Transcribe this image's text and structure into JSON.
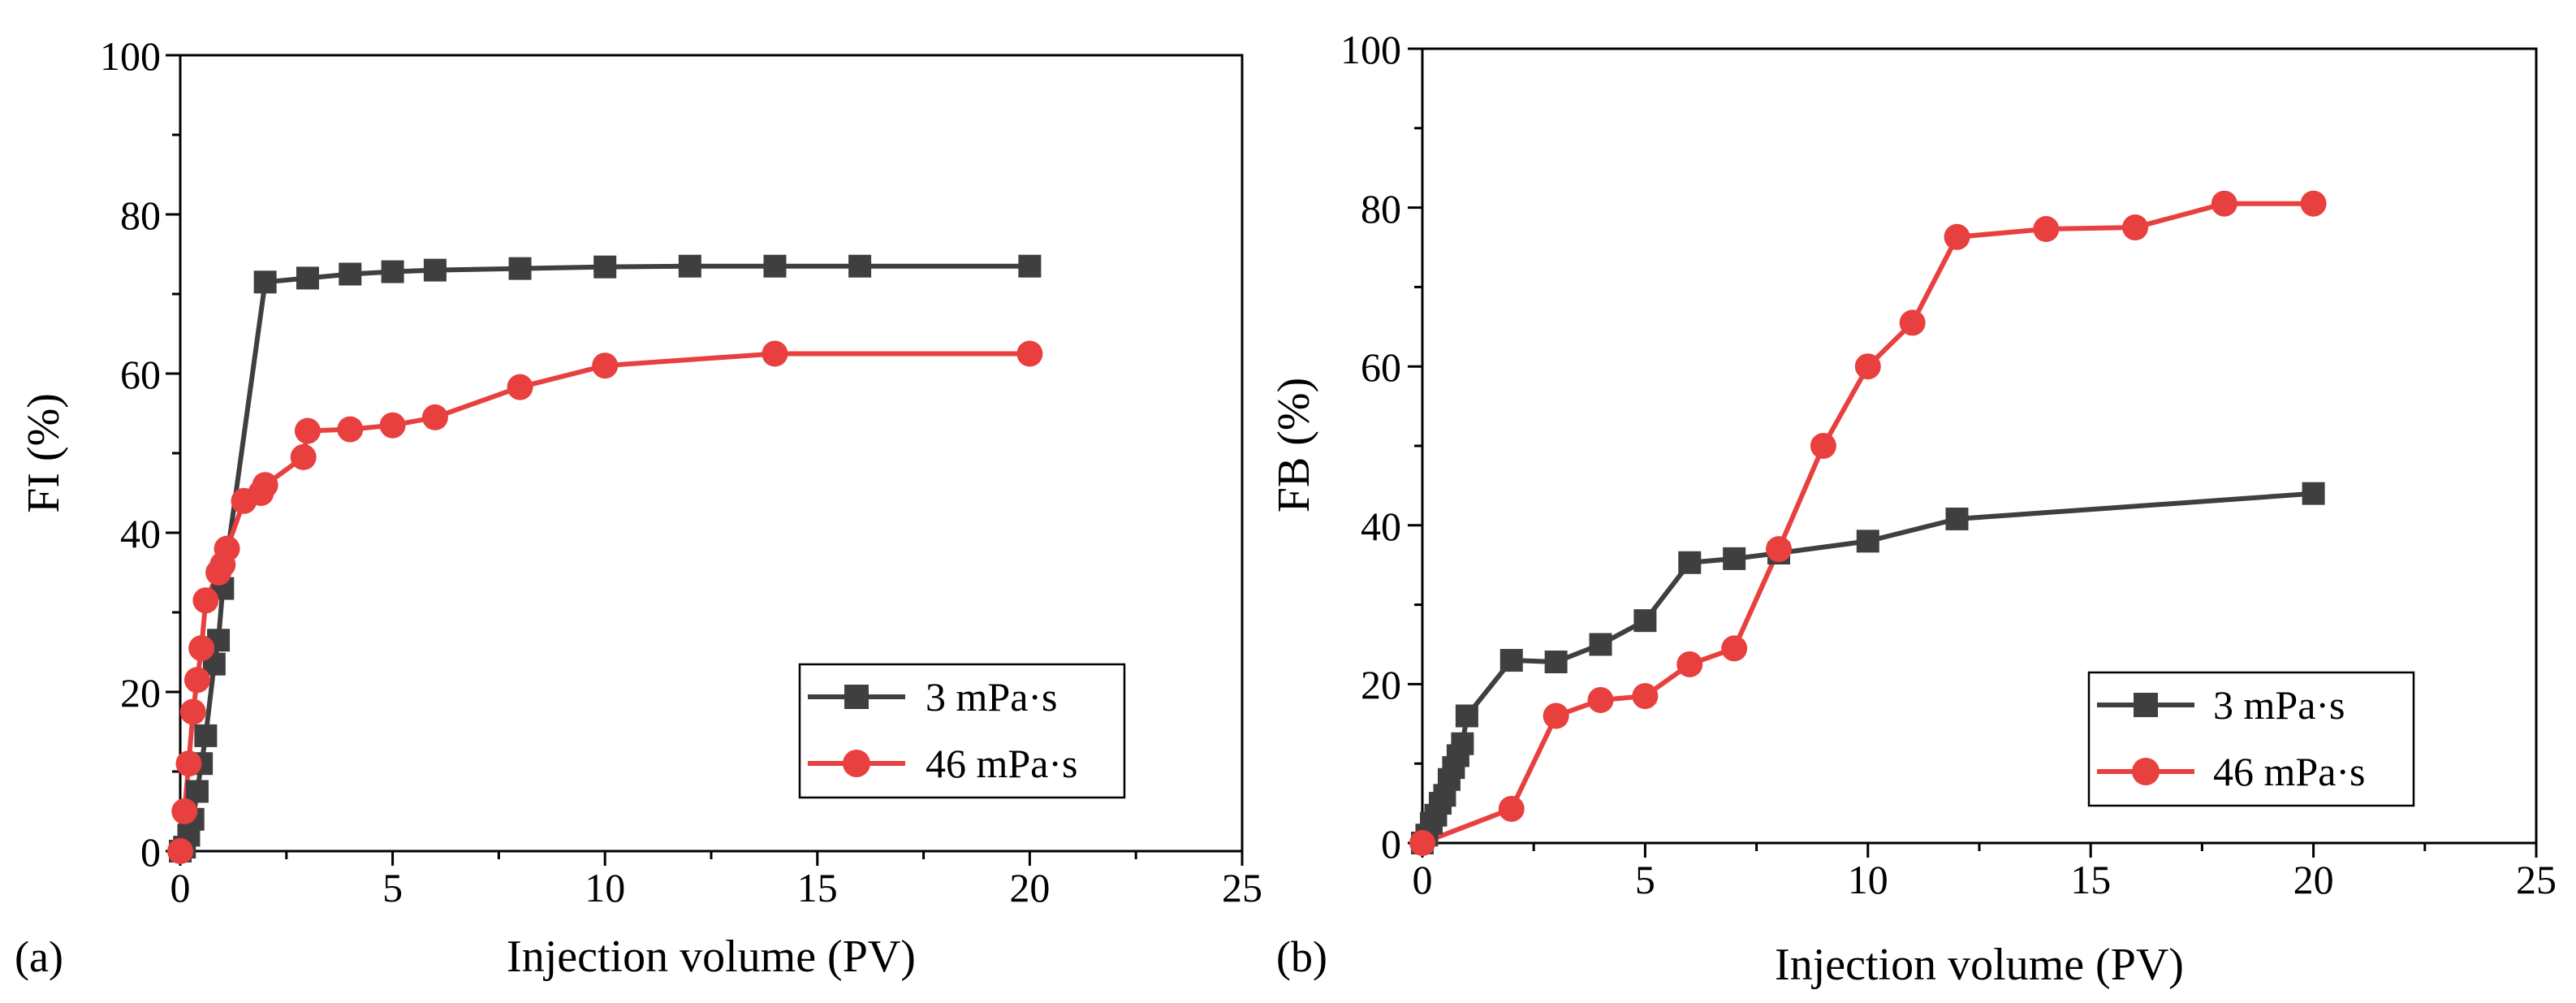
{
  "chart_data": [
    {
      "type": "line",
      "panel_label": "(a)",
      "xlabel": "Injection volume (PV)",
      "ylabel": "FI (%)",
      "xlim": [
        0,
        25
      ],
      "ylim": [
        0,
        100
      ],
      "xticks": [
        0,
        5,
        10,
        15,
        20,
        25
      ],
      "yticks": [
        0,
        20,
        40,
        60,
        80,
        100
      ],
      "xtick_labels": [
        "0",
        "5",
        "10",
        "15",
        "20",
        "25"
      ],
      "ytick_labels": [
        "0",
        "20",
        "40",
        "60",
        "80",
        "100"
      ],
      "grid": false,
      "legend_position": "lower-right",
      "series": [
        {
          "name": "3 mPa·s",
          "marker": "square",
          "color": "#3f3f3f",
          "x": [
            0,
            0.1,
            0.2,
            0.3,
            0.4,
            0.5,
            0.6,
            0.8,
            0.9,
            1.0,
            2,
            3,
            4,
            5,
            6,
            8,
            10,
            12,
            14,
            16,
            20
          ],
          "y": [
            0,
            0.5,
            2,
            4,
            7.5,
            11,
            14.5,
            23.5,
            26.5,
            33,
            71.5,
            72,
            72.5,
            72.8,
            73,
            73.2,
            73.4,
            73.5,
            73.5,
            73.5,
            73.5
          ]
        },
        {
          "name": "46 mPa·s",
          "marker": "circle",
          "color": "#e8403e",
          "x": [
            0,
            0.1,
            0.2,
            0.3,
            0.4,
            0.5,
            0.6,
            0.9,
            1.0,
            1.1,
            1.5,
            1.9,
            2.0,
            2.9,
            3.0,
            4,
            5,
            6,
            8,
            10,
            14,
            20
          ],
          "y": [
            0,
            5,
            11,
            17.5,
            21.5,
            25.5,
            31.5,
            35,
            36,
            38,
            44,
            45,
            46,
            49.5,
            52.8,
            53,
            53.5,
            54.5,
            58.3,
            61,
            62.5,
            62.5
          ]
        }
      ]
    },
    {
      "type": "line",
      "panel_label": "(b)",
      "xlabel": "Injection volume (PV)",
      "ylabel": "FB (%)",
      "xlim": [
        0,
        25
      ],
      "ylim": [
        0,
        100
      ],
      "xticks": [
        0,
        5,
        10,
        15,
        20,
        25
      ],
      "yticks": [
        0,
        20,
        40,
        60,
        80,
        100
      ],
      "xtick_labels": [
        "0",
        "5",
        "10",
        "15",
        "20",
        "25"
      ],
      "ytick_labels": [
        "0",
        "20",
        "40",
        "60",
        "80",
        "100"
      ],
      "grid": false,
      "legend_position": "lower-right",
      "series": [
        {
          "name": "3 mPa·s",
          "marker": "square",
          "color": "#3f3f3f",
          "x": [
            0,
            0.1,
            0.2,
            0.3,
            0.4,
            0.5,
            0.6,
            0.7,
            0.8,
            0.9,
            1.0,
            2,
            3,
            4,
            5,
            6,
            7,
            8,
            10,
            12,
            20
          ],
          "y": [
            0,
            1,
            2.5,
            3.5,
            5,
            6,
            8,
            9.5,
            11,
            12.5,
            16,
            23,
            22.8,
            25,
            28,
            35.3,
            35.8,
            36.5,
            38,
            40.8,
            44
          ]
        },
        {
          "name": "46 mPa·s",
          "marker": "circle",
          "color": "#e8403e",
          "x": [
            0,
            2,
            3,
            4,
            5,
            6,
            7,
            8,
            9,
            10,
            11,
            12,
            14,
            16,
            18,
            20
          ],
          "y": [
            0,
            4.3,
            16,
            18,
            18.5,
            22.5,
            24.5,
            37,
            50,
            60,
            65.5,
            76.3,
            77.3,
            77.5,
            80.5,
            80.5
          ]
        }
      ]
    }
  ]
}
